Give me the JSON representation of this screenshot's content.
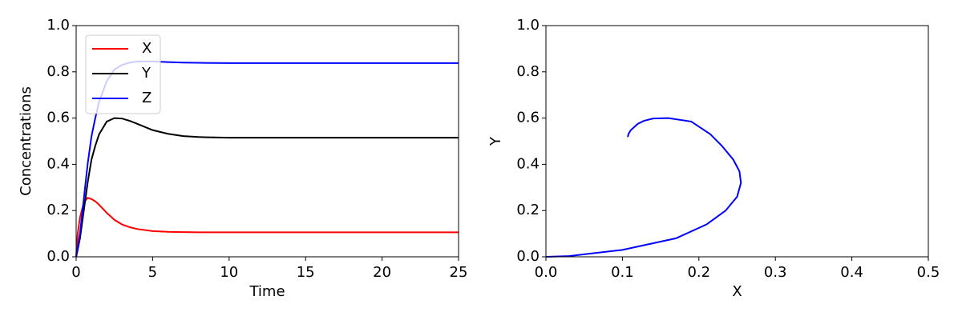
{
  "chart_data": [
    {
      "type": "line",
      "x": [
        0,
        0.1,
        0.25,
        0.5,
        0.75,
        1,
        1.25,
        1.5,
        2,
        2.5,
        3,
        3.5,
        4,
        5,
        6,
        7,
        8,
        10,
        12,
        15,
        20,
        25
      ],
      "series": [
        {
          "name": "X",
          "color": "#ff0000",
          "values": [
            0,
            0.1,
            0.17,
            0.235,
            0.255,
            0.25,
            0.24,
            0.225,
            0.19,
            0.16,
            0.14,
            0.128,
            0.12,
            0.111,
            0.108,
            0.107,
            0.106,
            0.106,
            0.106,
            0.106,
            0.106,
            0.106
          ]
        },
        {
          "name": "Y",
          "color": "#000000",
          "values": [
            0,
            0.03,
            0.08,
            0.2,
            0.32,
            0.42,
            0.48,
            0.53,
            0.585,
            0.6,
            0.598,
            0.588,
            0.575,
            0.548,
            0.532,
            0.522,
            0.518,
            0.515,
            0.515,
            0.515,
            0.515,
            0.515
          ]
        },
        {
          "name": "Z",
          "color": "#0000ff",
          "values": [
            0,
            0.04,
            0.1,
            0.25,
            0.4,
            0.52,
            0.6,
            0.67,
            0.76,
            0.81,
            0.83,
            0.84,
            0.845,
            0.845,
            0.842,
            0.84,
            0.839,
            0.838,
            0.838,
            0.838,
            0.838,
            0.838
          ]
        }
      ],
      "xlim": [
        0,
        25
      ],
      "ylim": [
        0,
        1
      ],
      "xticks": [
        0,
        5,
        10,
        15,
        20,
        25
      ],
      "yticks": [
        {
          "value": 0,
          "label": "0.0"
        },
        {
          "value": 0.2,
          "label": "0.2"
        },
        {
          "value": 0.4,
          "label": "0.4"
        },
        {
          "value": 0.6,
          "label": "0.6"
        },
        {
          "value": 0.8,
          "label": "0.8"
        },
        {
          "value": 1,
          "label": "1.0"
        }
      ],
      "xlabel": "Time",
      "ylabel": "Concentrations",
      "legend": "upper left"
    },
    {
      "type": "line",
      "x": [
        0,
        0.03,
        0.1,
        0.17,
        0.21,
        0.235,
        0.25,
        0.255,
        0.253,
        0.245,
        0.23,
        0.215,
        0.19,
        0.16,
        0.14,
        0.128,
        0.12,
        0.111,
        0.108,
        0.107
      ],
      "values": [
        0,
        0.003,
        0.03,
        0.08,
        0.14,
        0.2,
        0.26,
        0.32,
        0.37,
        0.42,
        0.48,
        0.53,
        0.585,
        0.6,
        0.598,
        0.588,
        0.575,
        0.548,
        0.532,
        0.518
      ],
      "color": "#0000ff",
      "xlim": [
        0,
        0.5
      ],
      "ylim": [
        0,
        1
      ],
      "xticks": [
        {
          "value": 0,
          "label": "0.0"
        },
        0.1,
        0.2,
        0.3,
        0.4,
        0.5
      ],
      "yticks": [
        {
          "value": 0,
          "label": "0.0"
        },
        0.2,
        0.4,
        0.6,
        0.8,
        {
          "value": 1,
          "label": "1.0"
        }
      ],
      "xlabel": "X",
      "ylabel": "Y"
    }
  ]
}
